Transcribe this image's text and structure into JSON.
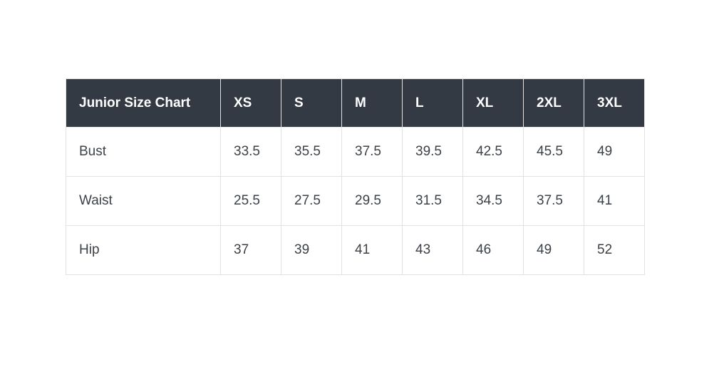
{
  "colors": {
    "header_bg": "#333a44",
    "header_text": "#ffffff",
    "body_text": "#3c4248",
    "border": "#e2e2e4",
    "page_bg": "#ffffff"
  },
  "table": {
    "title": "Junior Size Chart",
    "columns": [
      "XS",
      "S",
      "M",
      "L",
      "XL",
      "2XL",
      "3XL"
    ],
    "rows": [
      {
        "label": "Bust",
        "values": [
          "33.5",
          "35.5",
          "37.5",
          "39.5",
          "42.5",
          "45.5",
          "49"
        ]
      },
      {
        "label": "Waist",
        "values": [
          "25.5",
          "27.5",
          "29.5",
          "31.5",
          "34.5",
          "37.5",
          "41"
        ]
      },
      {
        "label": "Hip",
        "values": [
          "37",
          "39",
          "41",
          "43",
          "46",
          "49",
          "52"
        ]
      }
    ]
  },
  "chart_data": {
    "type": "table",
    "title": "Junior Size Chart",
    "categories": [
      "XS",
      "S",
      "M",
      "L",
      "XL",
      "2XL",
      "3XL"
    ],
    "series": [
      {
        "name": "Bust",
        "values": [
          33.5,
          35.5,
          37.5,
          39.5,
          42.5,
          45.5,
          49
        ]
      },
      {
        "name": "Waist",
        "values": [
          25.5,
          27.5,
          29.5,
          31.5,
          34.5,
          37.5,
          41
        ]
      },
      {
        "name": "Hip",
        "values": [
          37,
          39,
          41,
          43,
          46,
          49,
          52
        ]
      }
    ]
  }
}
